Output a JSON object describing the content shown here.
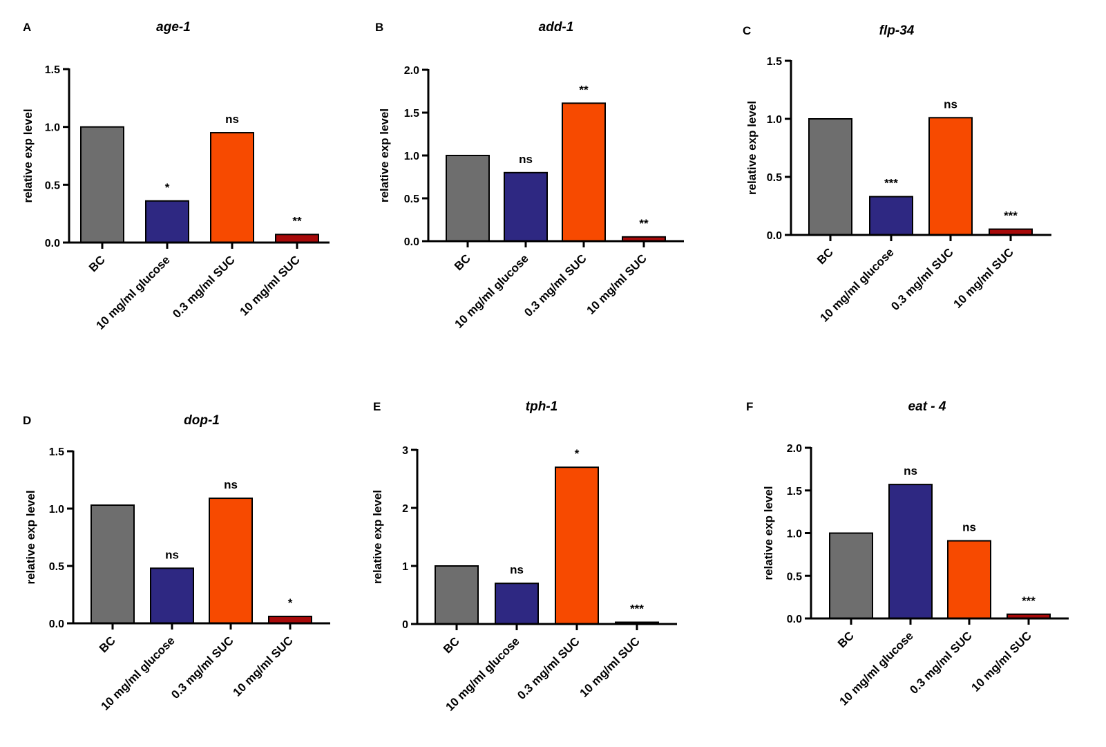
{
  "figure": {
    "ylabel": "relative exp level",
    "categories": [
      "BC",
      "10 mg/ml glucose",
      "0.3 mg/ml SUC",
      "10 mg/ml SUC"
    ],
    "bar_colors": [
      "#6e6e6e",
      "#2e2882",
      "#f74a00",
      "#a80a0a"
    ]
  },
  "chart_data": [
    {
      "type": "bar",
      "panel": "A",
      "title": "age-1",
      "ylabel": "relative exp level",
      "categories": [
        "BC",
        "10 mg/ml glucose",
        "0.3 mg/ml SUC",
        "10 mg/ml SUC"
      ],
      "values": [
        1.0,
        0.36,
        0.95,
        0.07
      ],
      "significance": [
        "",
        "*",
        "ns",
        "**"
      ],
      "ylim": [
        0,
        1.5
      ],
      "yticks": [
        0.0,
        0.5,
        1.0,
        1.5
      ],
      "tick_labels": [
        "0.0",
        "0.5",
        "1.0",
        "1.5"
      ]
    },
    {
      "type": "bar",
      "panel": "B",
      "title": "add-1",
      "ylabel": "relative exp level",
      "categories": [
        "BC",
        "10 mg/ml glucose",
        "0.3 mg/ml SUC",
        "10 mg/ml SUC"
      ],
      "values": [
        1.0,
        0.8,
        1.61,
        0.05
      ],
      "significance": [
        "",
        "ns",
        "**",
        "**"
      ],
      "ylim": [
        0,
        2.0
      ],
      "yticks": [
        0.0,
        0.5,
        1.0,
        1.5,
        2.0
      ],
      "tick_labels": [
        "0.0",
        "0.5",
        "1.0",
        "1.5",
        "2.0"
      ]
    },
    {
      "type": "bar",
      "panel": "C",
      "title": "flp-34",
      "ylabel": "relative exp level",
      "categories": [
        "BC",
        "10 mg/ml glucose",
        "0.3 mg/ml SUC",
        "10 mg/ml SUC"
      ],
      "values": [
        1.0,
        0.33,
        1.01,
        0.05
      ],
      "significance": [
        "",
        "***",
        "ns",
        "***"
      ],
      "ylim": [
        0,
        1.5
      ],
      "yticks": [
        0.0,
        0.5,
        1.0,
        1.5
      ],
      "tick_labels": [
        "0.0",
        "0.5",
        "1.0",
        "1.5"
      ]
    },
    {
      "type": "bar",
      "panel": "D",
      "title": "dop-1",
      "ylabel": "relative exp level",
      "categories": [
        "BC",
        "10 mg/ml glucose",
        "0.3 mg/ml SUC",
        "10 mg/ml SUC"
      ],
      "values": [
        1.03,
        0.48,
        1.09,
        0.06
      ],
      "significance": [
        "",
        "ns",
        "ns",
        "*"
      ],
      "ylim": [
        0,
        1.5
      ],
      "yticks": [
        0.0,
        0.5,
        1.0,
        1.5
      ],
      "tick_labels": [
        "0.0",
        "0.5",
        "1.0",
        "1.5"
      ]
    },
    {
      "type": "bar",
      "panel": "E",
      "title": "tph-1",
      "ylabel": "relative exp level",
      "categories": [
        "BC",
        "10 mg/ml glucose",
        "0.3 mg/ml SUC",
        "10 mg/ml SUC"
      ],
      "values": [
        1.0,
        0.7,
        2.7,
        0.03
      ],
      "significance": [
        "",
        "ns",
        "*",
        "***"
      ],
      "ylim": [
        0,
        3
      ],
      "yticks": [
        0,
        1,
        2,
        3
      ],
      "tick_labels": [
        "0",
        "1",
        "2",
        "3"
      ]
    },
    {
      "type": "bar",
      "panel": "F",
      "title": "eat - 4",
      "ylabel": "relative exp level",
      "categories": [
        "BC",
        "10 mg/ml glucose",
        "0.3 mg/ml SUC",
        "10 mg/ml SUC"
      ],
      "values": [
        1.0,
        1.57,
        0.91,
        0.05
      ],
      "significance": [
        "",
        "ns",
        "ns",
        "***"
      ],
      "ylim": [
        0,
        2.0
      ],
      "yticks": [
        0.0,
        0.5,
        1.0,
        1.5,
        2.0
      ],
      "tick_labels": [
        "0.0",
        "0.5",
        "1.0",
        "1.5",
        "2.0"
      ]
    }
  ]
}
